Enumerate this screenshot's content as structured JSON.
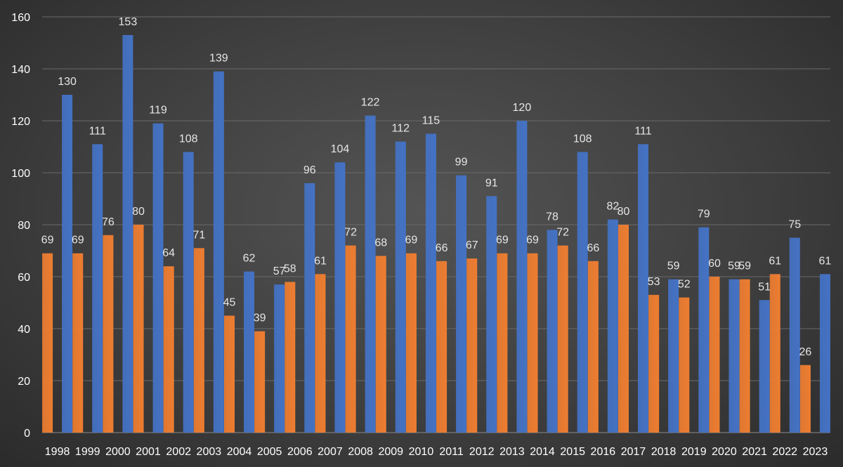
{
  "chart_data": {
    "type": "bar",
    "title": "",
    "xlabel": "",
    "ylabel": "",
    "ylim": [
      0,
      160
    ],
    "yticks": [
      0,
      20,
      40,
      60,
      80,
      100,
      120,
      140,
      160
    ],
    "grid": true,
    "legend": "none",
    "categories": [
      "1998",
      "1999",
      "2000",
      "2001",
      "2002",
      "2003",
      "2004",
      "2005",
      "2006",
      "2007",
      "2008",
      "2009",
      "2010",
      "2011",
      "2012",
      "2013",
      "2014",
      "2015",
      "2016",
      "2017",
      "2018",
      "2019",
      "2020",
      "2021",
      "2022",
      "2023"
    ],
    "series": [
      {
        "color": "#ed7d31",
        "values": [
          69,
          69,
          76,
          80,
          64,
          71,
          45,
          39,
          58,
          61,
          72,
          68,
          69,
          66,
          67,
          69,
          69,
          72,
          66,
          80,
          53,
          52,
          60,
          59,
          61,
          26
        ]
      },
      {
        "color": "#4472c4",
        "values": [
          130,
          111,
          153,
          119,
          108,
          139,
          62,
          57,
          96,
          104,
          122,
          112,
          115,
          99,
          91,
          120,
          78,
          108,
          82,
          111,
          59,
          79,
          59,
          51,
          75,
          61
        ]
      }
    ]
  }
}
